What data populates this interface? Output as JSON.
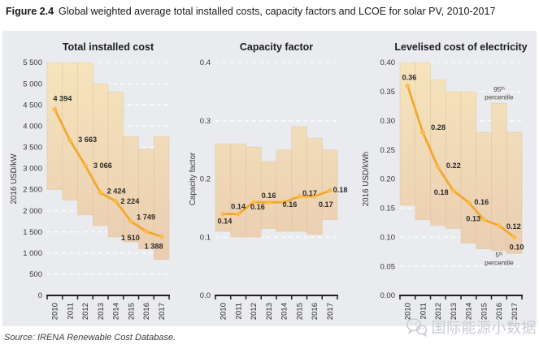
{
  "figure": {
    "label": "Figure 2.4",
    "caption": "Global weighted average total installed costs, capacity factors and LCOE for solar PV, 2010-2017"
  },
  "source": "Source: IRENA Renewable Cost Database.",
  "watermark": {
    "icon": "wechat-icon",
    "text": "国际能源小数据"
  },
  "colors": {
    "panel_bg": "#e9ebee",
    "band_top": "#f6e4bd",
    "band_bottom": "#e7c9af",
    "band_stroke": "#dcbd93",
    "line": "#f2a72e",
    "marker": "#f9bd4a",
    "grid": "#ffffff",
    "axis": "#231f20",
    "text": "#2e2c29",
    "tick_text": "#3a3836",
    "annotation_text": "#45423f",
    "title_text": "#1d1d1b"
  },
  "chart_data": [
    {
      "type": "line",
      "title": "Total installed cost",
      "ylabel": "2016 USD/kW",
      "ylim": [
        0,
        5500
      ],
      "grid": true,
      "categories": [
        "2010",
        "2011",
        "2012",
        "2013",
        "2014",
        "2015",
        "2016",
        "2017"
      ],
      "yticks": [
        {
          "v": 0,
          "label": "0"
        },
        {
          "v": 500,
          "label": "500"
        },
        {
          "v": 1000,
          "label": "1 000"
        },
        {
          "v": 1500,
          "label": "1 500"
        },
        {
          "v": 2000,
          "label": "2 000"
        },
        {
          "v": 2500,
          "label": "2 500"
        },
        {
          "v": 3000,
          "label": "3 000"
        },
        {
          "v": 3500,
          "label": "3 500"
        },
        {
          "v": 4000,
          "label": "4 000"
        },
        {
          "v": 4500,
          "label": "4 500"
        },
        {
          "v": 5000,
          "label": "5 000"
        },
        {
          "v": 5500,
          "label": "5 500"
        }
      ],
      "series": [
        {
          "name": "Global weighted average",
          "values": [
            4394,
            3663,
            3066,
            2424,
            2224,
            1749,
            1510,
            1388
          ],
          "labels": [
            "4 394",
            "3 663",
            "3 066",
            "2 424",
            "2 224",
            "1 749",
            "1 510",
            "1 388"
          ],
          "label_offsets": [
            [
              -2,
              -10,
              "start"
            ],
            [
              10,
              2,
              "start"
            ],
            [
              10,
              3,
              "start"
            ],
            [
              8,
              1,
              "start"
            ],
            [
              6,
              3,
              "start"
            ],
            [
              7,
              -2,
              "start"
            ],
            [
              -8,
              11,
              "end"
            ],
            [
              2,
              15,
              "end"
            ]
          ]
        }
      ],
      "band": {
        "range": "5th-95th percentile",
        "low": [
          2500,
          2250,
          1900,
          1650,
          1380,
          1260,
          1100,
          850
        ],
        "high": [
          5500,
          5500,
          5500,
          5000,
          4800,
          3750,
          3450,
          3750
        ]
      },
      "annotations": []
    },
    {
      "type": "line",
      "title": "Capacity factor",
      "ylabel": "Capacity factor",
      "ylim": [
        0,
        0.4
      ],
      "grid": true,
      "categories": [
        "2010",
        "2011",
        "2012",
        "2013",
        "2014",
        "2015",
        "2016",
        "2017"
      ],
      "yticks": [
        {
          "v": 0,
          "label": "0.0"
        },
        {
          "v": 0.1,
          "label": "0.1"
        },
        {
          "v": 0.2,
          "label": "0.2"
        },
        {
          "v": 0.3,
          "label": "0.3"
        },
        {
          "v": 0.4,
          "label": "0.4"
        }
      ],
      "series": [
        {
          "name": "Global weighted average",
          "values": [
            0.14,
            0.14,
            0.16,
            0.16,
            0.16,
            0.17,
            0.17,
            0.18
          ],
          "labels": [
            "0.14",
            "0.14",
            "0.16",
            "0.16",
            "0.16",
            "0.17",
            "0.17",
            "0.18"
          ],
          "label_offsets": [
            [
              2,
              12,
              "middle"
            ],
            [
              0,
              -6,
              "middle"
            ],
            [
              5,
              9,
              "middle"
            ],
            [
              0,
              -5,
              "middle"
            ],
            [
              7,
              6,
              "middle"
            ],
            [
              4,
              -1,
              "start"
            ],
            [
              5,
              13,
              "start"
            ],
            [
              4,
              2,
              "start"
            ]
          ]
        }
      ],
      "band": {
        "range": "5th-95th percentile",
        "low": [
          0.11,
          0.1,
          0.1,
          0.115,
          0.11,
          0.11,
          0.105,
          0.13
        ],
        "high": [
          0.26,
          0.26,
          0.255,
          0.23,
          0.25,
          0.29,
          0.27,
          0.25
        ]
      },
      "annotations": []
    },
    {
      "type": "line",
      "title": "Levelised cost of electricity",
      "ylabel": "2016 USD/kWh",
      "ylim": [
        0,
        0.4
      ],
      "grid": true,
      "categories": [
        "2010",
        "2011",
        "2012",
        "2013",
        "2014",
        "2015",
        "2016",
        "2017"
      ],
      "yticks": [
        {
          "v": 0,
          "label": "0.00"
        },
        {
          "v": 0.05,
          "label": "0.05"
        },
        {
          "v": 0.1,
          "label": "0.10"
        },
        {
          "v": 0.15,
          "label": "0.15"
        },
        {
          "v": 0.2,
          "label": "0.20"
        },
        {
          "v": 0.25,
          "label": "0.25"
        },
        {
          "v": 0.3,
          "label": "0.30"
        },
        {
          "v": 0.35,
          "label": "0.35"
        },
        {
          "v": 0.4,
          "label": "0.40"
        }
      ],
      "series": [
        {
          "name": "Global weighted average",
          "values": [
            0.36,
            0.28,
            0.22,
            0.18,
            0.16,
            0.13,
            0.12,
            0.1
          ],
          "labels": [
            "0.36",
            "0.28",
            "0.22",
            "0.18",
            "0.16",
            "0.13",
            "0.12",
            "0.10"
          ],
          "label_offsets": [
            [
              2,
              -7,
              "middle"
            ],
            [
              10,
              -3,
              "start"
            ],
            [
              10,
              1,
              "start"
            ],
            [
              -6,
              5,
              "end"
            ],
            [
              7,
              3,
              "start"
            ],
            [
              -4,
              2,
              "end"
            ],
            [
              9,
              4,
              "start"
            ],
            [
              3,
              15,
              "middle"
            ]
          ]
        }
      ],
      "band": {
        "range": "5th-95th percentile",
        "low": [
          0.155,
          0.13,
          0.12,
          0.115,
          0.09,
          0.08,
          0.077,
          0.072
        ],
        "high": [
          0.4,
          0.4,
          0.37,
          0.35,
          0.35,
          0.28,
          0.33,
          0.28
        ]
      },
      "annotations": [
        {
          "lines": [
            "95th",
            "percentile"
          ],
          "col": 6,
          "v": 0.35
        },
        {
          "lines": [
            "5th",
            "percentile"
          ],
          "col": 6,
          "v": 0.0655
        }
      ]
    }
  ]
}
